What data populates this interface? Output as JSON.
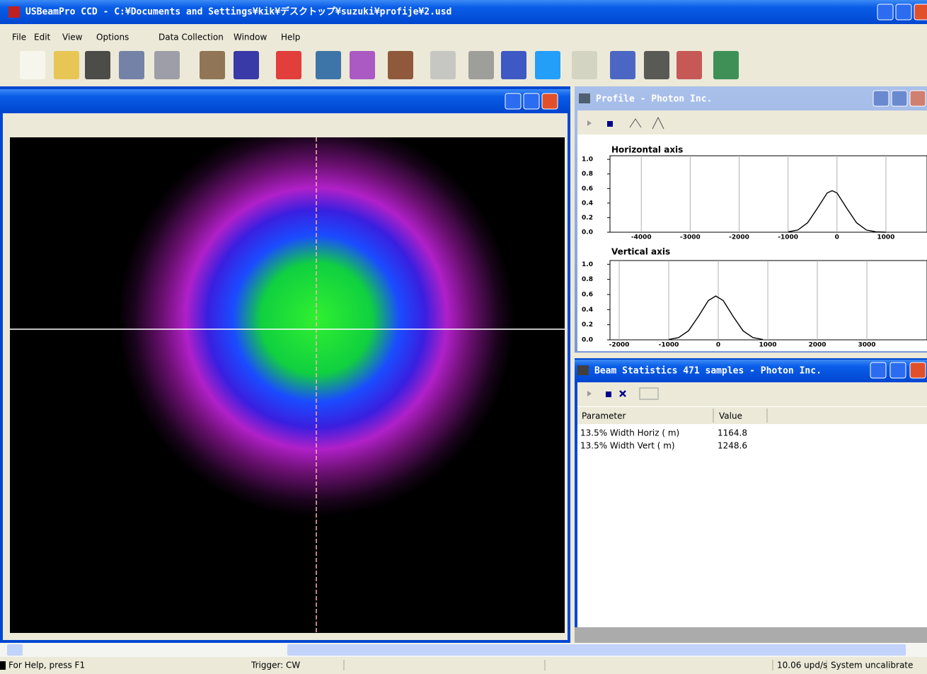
{
  "window": {
    "title": "USBeamPro CCD - C:¥Documents and Settings¥kik¥デスクトップ¥suzuki¥profije¥2.usd"
  },
  "menu": [
    "File",
    "Edit",
    "View",
    "Options",
    "Data Collection",
    "Window",
    "Help"
  ],
  "profile": {
    "title": "Profile - Photon Inc.",
    "charts": [
      {
        "type": "line",
        "title": "Horizontal axis",
        "x": [
          -1000,
          -800,
          -600,
          -400,
          -200,
          -100,
          0,
          200,
          400,
          600,
          800,
          1000
        ],
        "values": [
          0.005,
          0.03,
          0.13,
          0.33,
          0.54,
          0.57,
          0.54,
          0.33,
          0.13,
          0.03,
          0.005,
          0
        ],
        "xlim": [
          -4640,
          1840
        ],
        "ylim": [
          0,
          1.05
        ],
        "xticks": [
          -4000,
          -3000,
          -2000,
          -1000,
          0,
          1000
        ],
        "yticks": [
          {
            "value": 0,
            "label": "0.0"
          },
          0.2,
          0.4,
          0.6,
          0.8,
          {
            "value": 1,
            "label": "1.0"
          }
        ]
      },
      {
        "type": "line",
        "title": "Vertical axis",
        "x": [
          -1000,
          -800,
          -600,
          -400,
          -200,
          -50,
          100,
          300,
          500,
          700,
          900
        ],
        "values": [
          0.005,
          0.03,
          0.12,
          0.31,
          0.52,
          0.58,
          0.52,
          0.31,
          0.12,
          0.03,
          0.005
        ],
        "xlim": [
          -2186,
          4214
        ],
        "ylim": [
          0,
          1.05
        ],
        "xticks": [
          -2000,
          -1000,
          0,
          1000,
          2000,
          3000
        ],
        "yticks": [
          {
            "value": 0,
            "label": "0.0"
          },
          0.2,
          0.4,
          0.6,
          0.8,
          {
            "value": 1,
            "label": "1.0"
          }
        ]
      }
    ]
  },
  "stats": {
    "title": "Beam Statistics 471 samples - Photon Inc.",
    "headers": [
      "Parameter",
      "Value"
    ],
    "rows": [
      [
        "13.5% Width Horiz ( m)",
        1164.8
      ],
      [
        "13.5% Width Vert ( m)",
        1248.6
      ]
    ]
  },
  "status": [
    "For Help, press F1",
    "Trigger: CW",
    "10.06 upd/s",
    "System uncalibrate"
  ]
}
